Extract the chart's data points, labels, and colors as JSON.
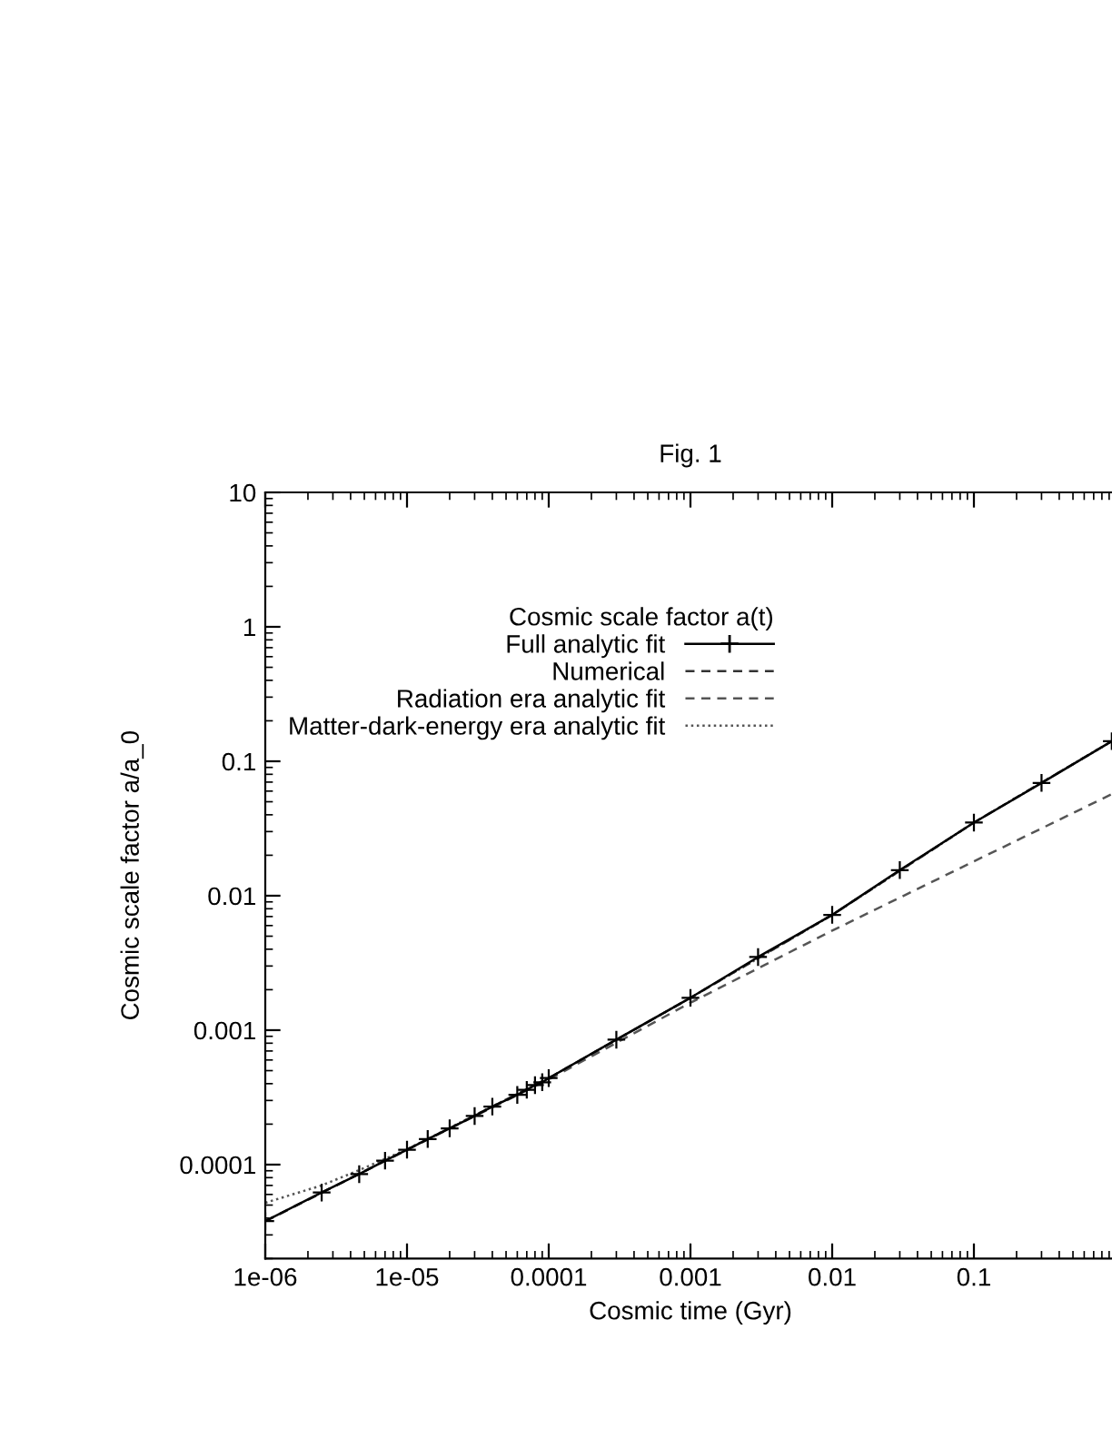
{
  "chart_data": {
    "type": "line",
    "title": "Fig. 1",
    "xlabel": "Cosmic time (Gyr)",
    "ylabel": "Cosmic scale factor a/a_0",
    "legend_title": "Cosmic scale factor a(t)",
    "log": "xy",
    "legend": "top left",
    "grid": false,
    "xlim": [
      1e-06,
      1
    ],
    "xticks": [
      1e-06,
      1e-05,
      0.0001,
      0.001,
      0.01,
      0.1
    ],
    "ylim": [
      2e-05,
      10
    ],
    "yticks": [
      0.0001,
      0.001,
      0.01,
      0.1,
      1,
      10
    ],
    "series": [
      {
        "name": "Full analytic fit",
        "color": "#000000",
        "marker": "cross",
        "line_style": "solid",
        "x": [
          1e-06,
          2.5e-06,
          4.6e-06,
          7e-06,
          1e-05,
          1.4e-05,
          2e-05,
          3e-05,
          4e-05,
          6e-05,
          7e-05,
          8e-05,
          9e-05,
          0.0001,
          0.0003,
          0.001,
          0.003,
          0.01,
          0.03,
          0.1,
          0.3,
          0.94
        ],
        "values": [
          3.8e-05,
          6.2e-05,
          8.5e-05,
          0.000107,
          0.000129,
          0.000155,
          0.000186,
          0.00023,
          0.00027,
          0.00033,
          0.00036,
          0.00039,
          0.00041,
          0.00044,
          0.00085,
          0.00174,
          0.0035,
          0.0072,
          0.0155,
          0.035,
          0.069,
          0.141
        ]
      },
      {
        "name": "Numerical",
        "color": "#333333",
        "marker": "none",
        "line_style": "dashed",
        "x": [
          1e-06,
          1e-05,
          0.0001,
          0.001,
          0.01,
          0.1,
          0.94
        ],
        "values": [
          3.8e-05,
          0.000129,
          0.00044,
          0.00174,
          0.0072,
          0.035,
          0.141
        ]
      },
      {
        "name": "Radiation era analytic fit",
        "color": "#555555",
        "marker": "none",
        "line_style": "dashed",
        "x": [
          1e-06,
          1e-05,
          0.0001,
          0.001,
          0.01,
          0.1,
          0.94
        ],
        "values": [
          3.8e-05,
          0.000129,
          0.00043,
          0.0016,
          0.0055,
          0.018,
          0.057
        ]
      },
      {
        "name": "Matter-dark-energy era analytic fit",
        "color": "#555555",
        "marker": "none",
        "line_style": "dotted",
        "x": [
          1e-06,
          2.5e-06,
          4.6e-06,
          1e-05,
          0.0001,
          0.001,
          0.01,
          0.1,
          0.94
        ],
        "values": [
          5.2e-05,
          7e-05,
          9.1e-05,
          0.00013,
          0.00044,
          0.00174,
          0.0072,
          0.035,
          0.141
        ]
      }
    ]
  }
}
